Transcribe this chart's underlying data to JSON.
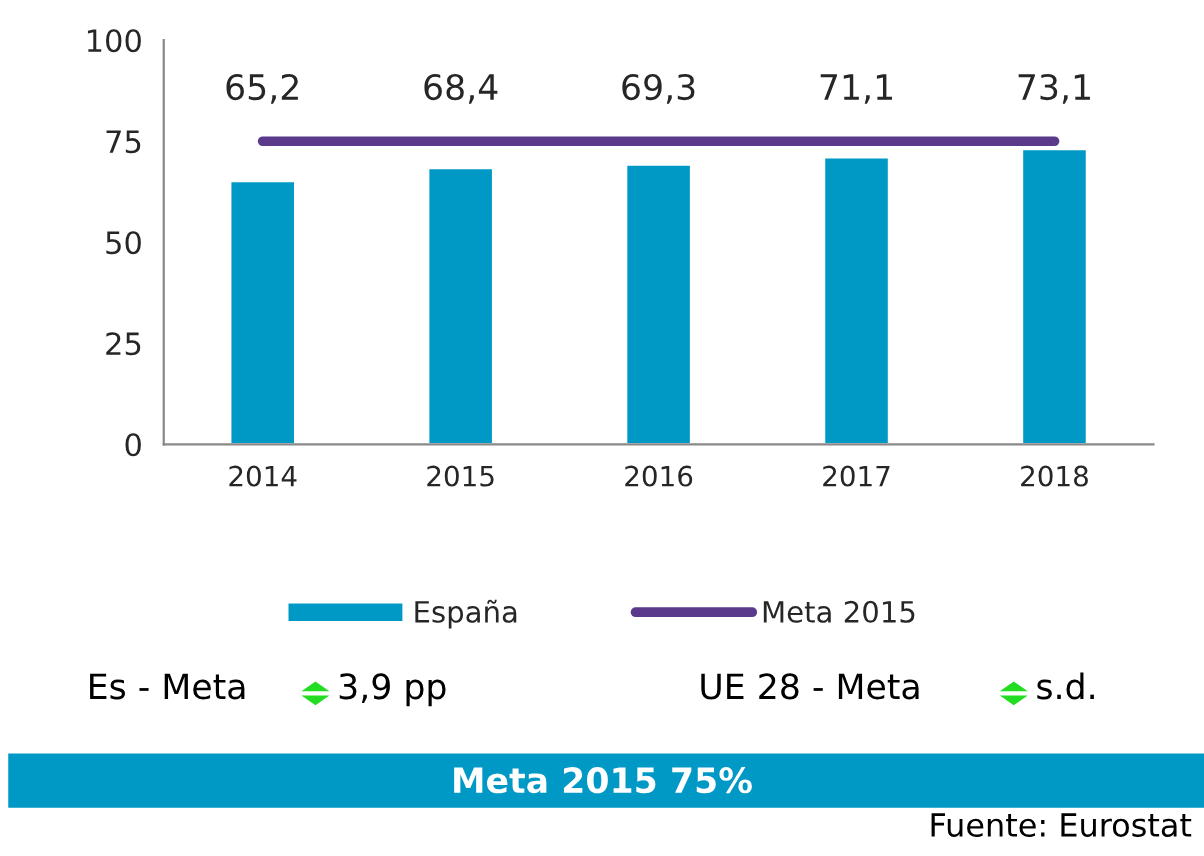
{
  "chart_data": {
    "type": "bar",
    "categories": [
      "2014",
      "2015",
      "2016",
      "2017",
      "2018"
    ],
    "series": [
      {
        "name": "España",
        "color": "#0099c6",
        "values": [
          65.2,
          68.4,
          69.3,
          71.1,
          73.1
        ],
        "value_labels": [
          "65,2",
          "68,4",
          "69,3",
          "71,1",
          "73,1"
        ]
      },
      {
        "name": "Meta 2015",
        "type": "line",
        "color": "#5b3a8c",
        "values": [
          75,
          75,
          75,
          75,
          75
        ]
      }
    ],
    "ylim": [
      0,
      100
    ],
    "yticks": [
      0,
      25,
      50,
      75,
      100
    ],
    "grid": false,
    "legend": "bottom",
    "marker": "none",
    "line_style": "solid",
    "annotations": [
      "Es - Meta",
      "3,9 pp",
      "UE 28 - Meta",
      "s.d.",
      "Meta 2015 75%",
      "Fuente: Eurostat"
    ]
  }
}
